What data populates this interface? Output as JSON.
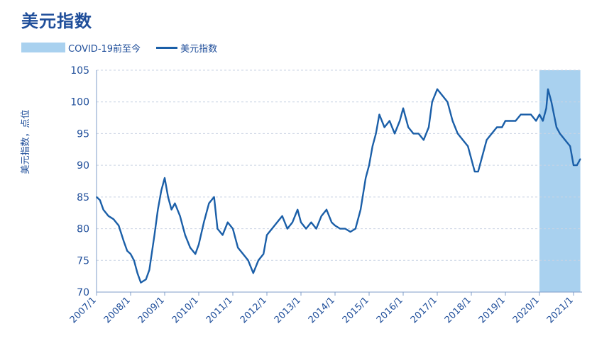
{
  "title": "美元指数",
  "legend": [
    {
      "label": "COVID-19前至今",
      "color": "#a9d1ef"
    },
    {
      "label": "美元指数",
      "color": "#1b5fa8"
    }
  ],
  "chart_data": {
    "type": "line",
    "title": "美元指数",
    "xlabel": "",
    "ylabel": "美元指数，点位",
    "ylim": [
      70,
      105
    ],
    "y_ticks": [
      70,
      75,
      80,
      85,
      90,
      95,
      100,
      105
    ],
    "x_ticks": [
      "2007/1",
      "2008/1",
      "2009/1",
      "2010/1",
      "2011/1",
      "2012/1",
      "2013/1",
      "2014/1",
      "2015/1",
      "2016/1",
      "2017/1",
      "2018/1",
      "2019/1",
      "2020/1",
      "2021/1"
    ],
    "grid": true,
    "shaded_region": {
      "label": "COVID-19前至今",
      "from": 2020.0,
      "to": 2021.2
    },
    "series": [
      {
        "name": "美元指数",
        "x": [
          2007.0,
          2007.1,
          2007.2,
          2007.35,
          2007.5,
          2007.65,
          2007.8,
          2007.9,
          2008.0,
          2008.1,
          2008.2,
          2008.3,
          2008.45,
          2008.55,
          2008.7,
          2008.8,
          2008.9,
          2009.0,
          2009.1,
          2009.2,
          2009.3,
          2009.45,
          2009.6,
          2009.75,
          2009.9,
          2010.0,
          2010.15,
          2010.3,
          2010.45,
          2010.55,
          2010.7,
          2010.85,
          2011.0,
          2011.15,
          2011.3,
          2011.45,
          2011.6,
          2011.75,
          2011.9,
          2012.0,
          2012.15,
          2012.3,
          2012.45,
          2012.6,
          2012.75,
          2012.9,
          2013.0,
          2013.15,
          2013.3,
          2013.45,
          2013.6,
          2013.75,
          2013.9,
          2014.0,
          2014.15,
          2014.3,
          2014.45,
          2014.6,
          2014.75,
          2014.9,
          2015.0,
          2015.1,
          2015.2,
          2015.3,
          2015.45,
          2015.6,
          2015.75,
          2015.9,
          2016.0,
          2016.15,
          2016.3,
          2016.45,
          2016.6,
          2016.75,
          2016.85,
          2017.0,
          2017.15,
          2017.3,
          2017.45,
          2017.6,
          2017.75,
          2017.9,
          2018.0,
          2018.1,
          2018.2,
          2018.3,
          2018.45,
          2018.6,
          2018.75,
          2018.9,
          2019.0,
          2019.15,
          2019.3,
          2019.45,
          2019.6,
          2019.75,
          2019.9,
          2020.0,
          2020.1,
          2020.2,
          2020.25,
          2020.35,
          2020.5,
          2020.6,
          2020.75,
          2020.9,
          2021.0,
          2021.1,
          2021.2
        ],
        "values": [
          85,
          84.5,
          83,
          82,
          81.5,
          80.5,
          78,
          76.5,
          76,
          75,
          73,
          71.5,
          72,
          73.5,
          79,
          83,
          86,
          88,
          85,
          83,
          84,
          82,
          79,
          77,
          76,
          77.5,
          81,
          84,
          85,
          80,
          79,
          81,
          80,
          77,
          76,
          75,
          73,
          75,
          76,
          79,
          80,
          81,
          82,
          80,
          81,
          83,
          81,
          80,
          81,
          80,
          82,
          83,
          81,
          80.5,
          80,
          80,
          79.5,
          80,
          83,
          88,
          90,
          93,
          95,
          98,
          96,
          97,
          95,
          97,
          99,
          96,
          95,
          95,
          94,
          96,
          100,
          102,
          101,
          100,
          97,
          95,
          94,
          93,
          91,
          89,
          89,
          91,
          94,
          95,
          96,
          96,
          97,
          97,
          97,
          98,
          98,
          98,
          97,
          98,
          97,
          99,
          102,
          100,
          96,
          95,
          94,
          93,
          90,
          90,
          91
        ]
      }
    ]
  }
}
